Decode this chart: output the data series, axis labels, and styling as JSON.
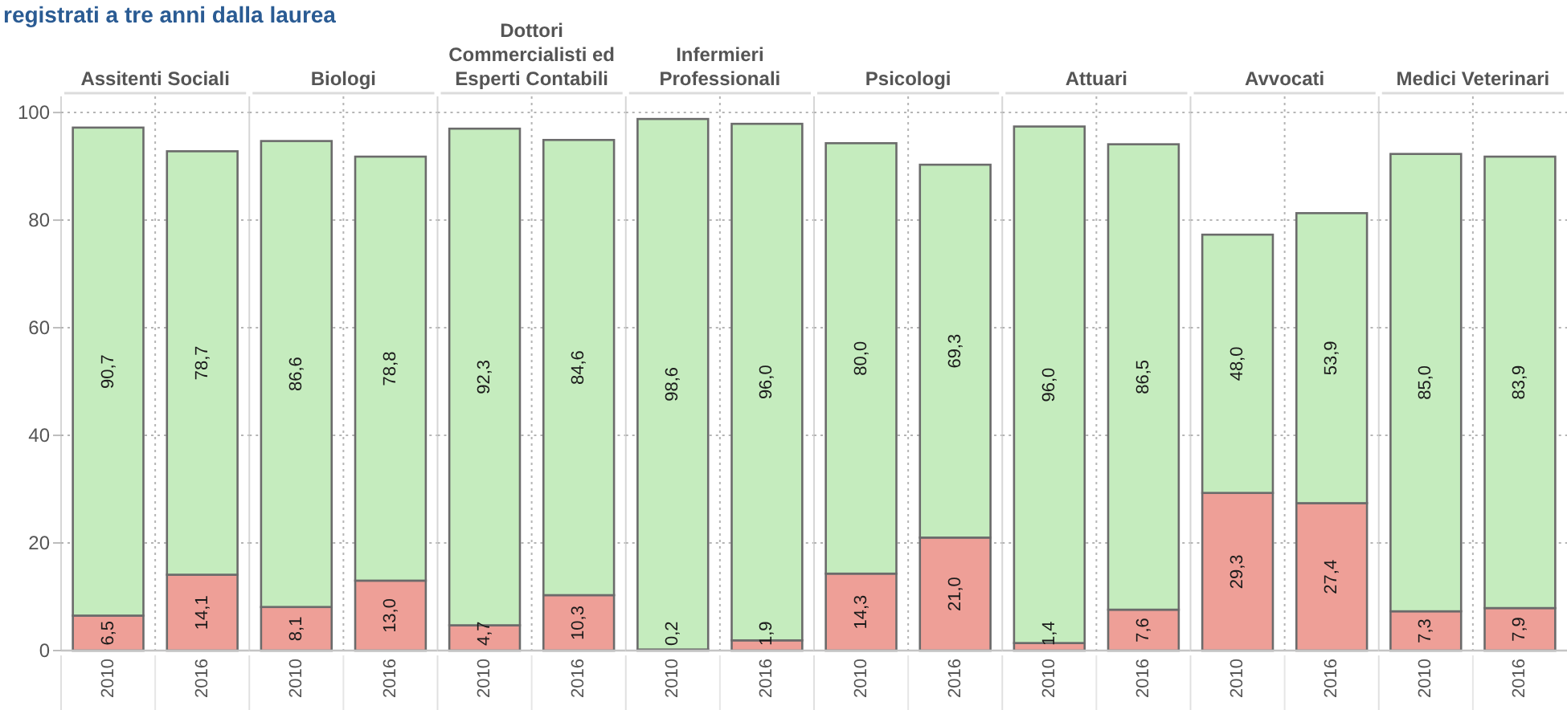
{
  "chart_data": [
    {
      "type": "bar",
      "title": "Assitenti Sociali",
      "categories": [
        "2010",
        "2016"
      ],
      "stacked": true,
      "series": [
        {
          "color": "#ee9f97",
          "values": [
            6.5,
            14.1
          ],
          "value_labels": [
            "6,5",
            "14,1"
          ]
        },
        {
          "color": "#c5ecbe",
          "values": [
            90.7,
            78.7
          ],
          "value_labels": [
            "90,7",
            "78,7"
          ]
        }
      ],
      "ylim": [
        0,
        103
      ],
      "yticks": [
        0,
        20,
        40,
        60,
        80,
        100
      ],
      "grid": true,
      "annotations": [
        "registrati a tre anni dalla laurea"
      ]
    },
    {
      "type": "bar",
      "title": "Biologi",
      "categories": [
        "2010",
        "2016"
      ],
      "stacked": true,
      "series": [
        {
          "color": "#ee9f97",
          "values": [
            8.1,
            13.0
          ],
          "value_labels": [
            "8,1",
            "13,0"
          ]
        },
        {
          "color": "#c5ecbe",
          "values": [
            86.6,
            78.8
          ],
          "value_labels": [
            "86,6",
            "78,8"
          ]
        }
      ],
      "ylim": [
        0,
        103
      ],
      "yticks": [
        0,
        20,
        40,
        60,
        80,
        100
      ],
      "grid": true,
      "tick_labels": "x"
    },
    {
      "type": "bar",
      "title": "Dottori Commercialisti ed Esperti Contabili",
      "categories": [
        "2010",
        "2016"
      ],
      "stacked": true,
      "series": [
        {
          "color": "#ee9f97",
          "values": [
            4.7,
            10.3
          ],
          "value_labels": [
            "4,7",
            "10,3"
          ]
        },
        {
          "color": "#c5ecbe",
          "values": [
            92.3,
            84.6
          ],
          "value_labels": [
            "92,3",
            "84,6"
          ]
        }
      ],
      "ylim": [
        0,
        103
      ],
      "yticks": [
        0,
        20,
        40,
        60,
        80,
        100
      ],
      "grid": true,
      "tick_labels": "x"
    },
    {
      "type": "bar",
      "title": "Infermieri Professionali",
      "categories": [
        "2010",
        "2016"
      ],
      "stacked": true,
      "series": [
        {
          "color": "#ee9f97",
          "values": [
            0.2,
            1.9
          ],
          "value_labels": [
            "0,2",
            "1,9"
          ]
        },
        {
          "color": "#c5ecbe",
          "values": [
            98.6,
            96.0
          ],
          "value_labels": [
            "98,6",
            "96,0"
          ]
        }
      ],
      "ylim": [
        0,
        103
      ],
      "yticks": [
        0,
        20,
        40,
        60,
        80,
        100
      ],
      "grid": true,
      "tick_labels": "x"
    },
    {
      "type": "bar",
      "title": "Psicologi",
      "categories": [
        "2010",
        "2016"
      ],
      "stacked": true,
      "series": [
        {
          "color": "#ee9f97",
          "values": [
            14.3,
            21.0
          ],
          "value_labels": [
            "14,3",
            "21,0"
          ]
        },
        {
          "color": "#c5ecbe",
          "values": [
            80.0,
            69.3
          ],
          "value_labels": [
            "80,0",
            "69,3"
          ]
        }
      ],
      "ylim": [
        0,
        103
      ],
      "yticks": [
        0,
        20,
        40,
        60,
        80,
        100
      ],
      "grid": true,
      "tick_labels": "x"
    },
    {
      "type": "bar",
      "title": "Attuari",
      "categories": [
        "2010",
        "2016"
      ],
      "stacked": true,
      "series": [
        {
          "color": "#ee9f97",
          "values": [
            1.4,
            7.6
          ],
          "value_labels": [
            "1,4",
            "7,6"
          ]
        },
        {
          "color": "#c5ecbe",
          "values": [
            96.0,
            86.5
          ],
          "value_labels": [
            "96,0",
            "86,5"
          ]
        }
      ],
      "ylim": [
        0,
        103
      ],
      "yticks": [
        0,
        20,
        40,
        60,
        80,
        100
      ],
      "grid": true,
      "tick_labels": "x"
    },
    {
      "type": "bar",
      "title": "Avvocati",
      "categories": [
        "2010",
        "2016"
      ],
      "stacked": true,
      "series": [
        {
          "color": "#ee9f97",
          "values": [
            29.3,
            27.4
          ],
          "value_labels": [
            "29,3",
            "27,4"
          ]
        },
        {
          "color": "#c5ecbe",
          "values": [
            48.0,
            53.9
          ],
          "value_labels": [
            "48,0",
            "53,9"
          ]
        }
      ],
      "ylim": [
        0,
        103
      ],
      "yticks": [
        0,
        20,
        40,
        60,
        80,
        100
      ],
      "grid": true,
      "tick_labels": "x"
    },
    {
      "type": "bar",
      "title": "Medici Veterinari",
      "categories": [
        "2010",
        "2016"
      ],
      "stacked": true,
      "series": [
        {
          "color": "#ee9f97",
          "values": [
            7.3,
            7.9
          ],
          "value_labels": [
            "7,3",
            "7,9"
          ]
        },
        {
          "color": "#c5ecbe",
          "values": [
            85.0,
            83.9
          ],
          "value_labels": [
            "85,0",
            "83,9"
          ]
        }
      ],
      "ylim": [
        0,
        103
      ],
      "yticks": [
        0,
        20,
        40,
        60,
        80,
        100
      ],
      "grid": true,
      "tick_labels": "x"
    }
  ]
}
